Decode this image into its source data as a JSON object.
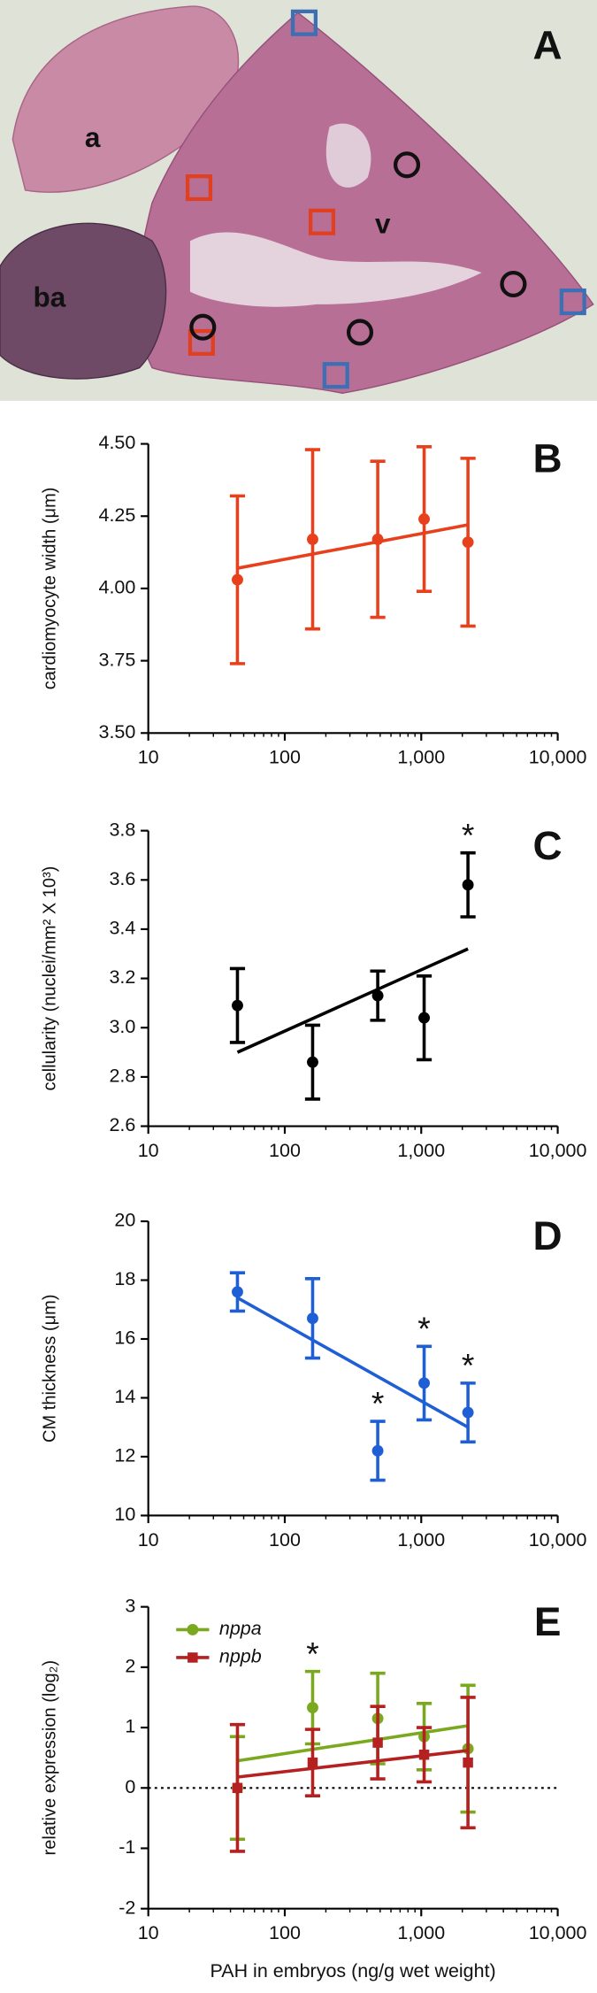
{
  "panel_a": {
    "label": "A",
    "regions": [
      "a",
      "v",
      "ba"
    ]
  },
  "chart_data": [
    {
      "type": "scatter",
      "panel": "B",
      "xscale": "log",
      "y_label": "cardiomyocyte width (μm)",
      "xlim": [
        10,
        10000
      ],
      "xticks": [
        10,
        100,
        {
          "value": 1000,
          "label": "1,000"
        },
        {
          "value": 10000,
          "label": "10,000"
        }
      ],
      "ylim": [
        3.5,
        4.5
      ],
      "yticks": [
        {
          "value": 3.5,
          "label": "3.50"
        },
        3.75,
        {
          "value": 4.0,
          "label": "4.00"
        },
        4.25,
        {
          "value": 4.5,
          "label": "4.50"
        }
      ],
      "x": [
        45,
        160,
        480,
        1050,
        2200
      ],
      "series": [
        {
          "name": "width",
          "color": "#e8401c",
          "marker": "circle",
          "values": [
            4.03,
            4.17,
            4.17,
            4.24,
            4.16
          ],
          "errors": [
            0.29,
            0.31,
            0.27,
            0.25,
            0.29
          ],
          "fit": {
            "x": [
              45,
              2200
            ],
            "y": [
              4.07,
              4.22
            ]
          }
        }
      ]
    },
    {
      "type": "scatter",
      "panel": "C",
      "xscale": "log",
      "y_label": "cellularity (nuclei/mm² X 10³)",
      "xlim": [
        10,
        10000
      ],
      "xticks": [
        10,
        100,
        {
          "value": 1000,
          "label": "1,000"
        },
        {
          "value": 10000,
          "label": "10,000"
        }
      ],
      "ylim": [
        2.6,
        3.8
      ],
      "yticks": [
        2.6,
        2.8,
        {
          "value": 3.0,
          "label": "3.0"
        },
        3.2,
        3.4,
        3.6,
        3.8
      ],
      "x": [
        45,
        160,
        480,
        1050,
        2200
      ],
      "marker_text": "*",
      "series": [
        {
          "name": "cellularity",
          "color": "#000000",
          "marker": "circle",
          "values": [
            3.09,
            2.86,
            3.13,
            3.04,
            3.58
          ],
          "errors": [
            0.15,
            0.15,
            0.1,
            0.17,
            0.13
          ],
          "significant": [
            false,
            false,
            false,
            false,
            true
          ],
          "fit": {
            "x": [
              45,
              2200
            ],
            "y": [
              2.9,
              3.32
            ]
          }
        }
      ]
    },
    {
      "type": "scatter",
      "panel": "D",
      "xscale": "log",
      "y_label": "CM thickness (μm)",
      "xlim": [
        10,
        10000
      ],
      "xticks": [
        10,
        100,
        {
          "value": 1000,
          "label": "1,000"
        },
        {
          "value": 10000,
          "label": "10,000"
        }
      ],
      "ylim": [
        10,
        20
      ],
      "yticks": [
        10,
        12,
        14,
        16,
        18,
        20
      ],
      "x": [
        45,
        160,
        480,
        1050,
        2200
      ],
      "marker_text": "*",
      "series": [
        {
          "name": "thickness",
          "color": "#1f5fd6",
          "marker": "circle",
          "values": [
            17.6,
            16.7,
            12.2,
            14.5,
            13.5
          ],
          "errors": [
            0.65,
            1.35,
            1.0,
            1.25,
            1.0
          ],
          "significant": [
            false,
            false,
            true,
            true,
            true
          ],
          "fit": {
            "x": [
              45,
              2200
            ],
            "y": [
              17.4,
              13.0
            ]
          }
        }
      ]
    },
    {
      "type": "scatter",
      "panel": "E",
      "xscale": "log",
      "y_label": "relative expression (log₂)",
      "x_label": "PAH in embryos (ng/g wet weight)",
      "xlim": [
        10,
        10000
      ],
      "xticks": [
        10,
        100,
        {
          "value": 1000,
          "label": "1,000"
        },
        {
          "value": 10000,
          "label": "10,000"
        }
      ],
      "ylim": [
        -2,
        3
      ],
      "yticks": [
        -2,
        -1,
        0,
        1,
        2,
        3
      ],
      "reference_line": 0,
      "legend": "top-left",
      "x": [
        45,
        160,
        480,
        1050,
        2200
      ],
      "marker_text": "*",
      "series": [
        {
          "name": "nppa",
          "color": "#7aa81e",
          "marker": "circle",
          "values": [
            0.0,
            1.33,
            1.15,
            0.85,
            0.65
          ],
          "errors": [
            0.85,
            0.6,
            0.75,
            0.55,
            1.05
          ],
          "significant": [
            false,
            true,
            false,
            false,
            false
          ],
          "fit": {
            "x": [
              45,
              2200
            ],
            "y": [
              0.45,
              1.03
            ]
          }
        },
        {
          "name": "nppb",
          "color": "#b52020",
          "marker": "square",
          "values": [
            0.0,
            0.42,
            0.75,
            0.55,
            0.42
          ],
          "errors": [
            1.05,
            0.55,
            0.6,
            0.45,
            1.08
          ],
          "significant": [
            false,
            false,
            false,
            false,
            false
          ],
          "fit": {
            "x": [
              45,
              2200
            ],
            "y": [
              0.18,
              0.62
            ]
          }
        }
      ]
    }
  ]
}
